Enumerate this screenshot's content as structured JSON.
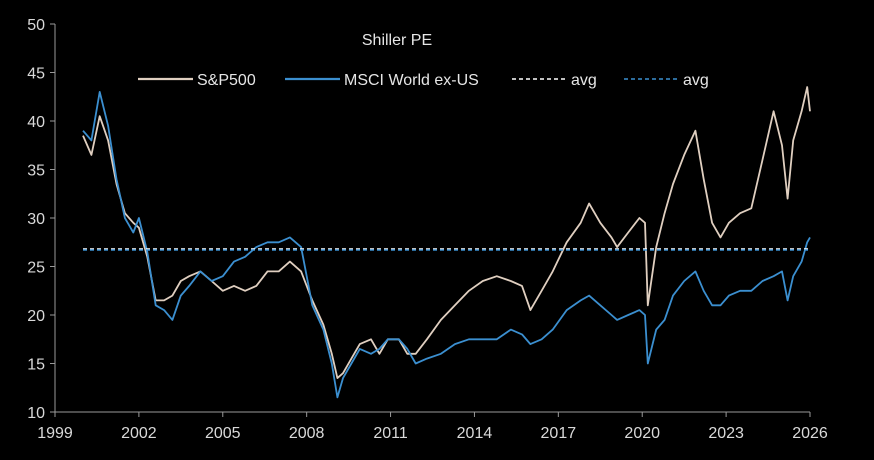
{
  "chart_data": {
    "type": "line",
    "title": "Shiller PE",
    "xlabel": "",
    "ylabel": "",
    "xlim": [
      1999,
      2026
    ],
    "ylim": [
      10,
      50
    ],
    "grid": false,
    "legend_position": "top",
    "x_ticks": [
      "1999",
      "2002",
      "2005",
      "2008",
      "2011",
      "2014",
      "2017",
      "2020",
      "2023",
      "2026"
    ],
    "y_ticks": [
      "10",
      "15",
      "20",
      "25",
      "30",
      "35",
      "40",
      "45",
      "50"
    ],
    "series": [
      {
        "name": "S&P500",
        "color": "#e0cfc0",
        "style": "solid",
        "x": [
          2000.0,
          2000.3,
          2000.6,
          2000.9,
          2001.2,
          2001.5,
          2001.8,
          2002.0,
          2002.3,
          2002.6,
          2002.9,
          2003.2,
          2003.5,
          2003.8,
          2004.2,
          2004.6,
          2005.0,
          2005.4,
          2005.8,
          2006.2,
          2006.6,
          2007.0,
          2007.4,
          2007.8,
          2008.2,
          2008.6,
          2008.9,
          2009.1,
          2009.3,
          2009.6,
          2009.9,
          2010.3,
          2010.6,
          2010.9,
          2011.3,
          2011.6,
          2011.9,
          2012.3,
          2012.8,
          2013.3,
          2013.8,
          2014.3,
          2014.8,
          2015.3,
          2015.7,
          2016.0,
          2016.4,
          2016.8,
          2017.3,
          2017.8,
          2018.1,
          2018.5,
          2018.9,
          2019.1,
          2019.5,
          2019.9,
          2020.1,
          2020.2,
          2020.5,
          2020.8,
          2021.1,
          2021.5,
          2021.9,
          2022.2,
          2022.5,
          2022.8,
          2023.1,
          2023.5,
          2023.9,
          2024.3,
          2024.7,
          2025.0,
          2025.2,
          2025.4,
          2025.7,
          2025.9,
          2026.0
        ],
        "y": [
          38.5,
          36.5,
          40.5,
          38.0,
          33.5,
          30.5,
          29.5,
          29.0,
          26.0,
          21.5,
          21.5,
          22.0,
          23.5,
          24.0,
          24.5,
          23.5,
          22.5,
          23.0,
          22.5,
          23.0,
          24.5,
          24.5,
          25.5,
          24.5,
          21.5,
          19.0,
          16.0,
          13.5,
          14.0,
          15.5,
          17.0,
          17.5,
          16.0,
          17.5,
          17.5,
          16.0,
          16.0,
          17.5,
          19.5,
          21.0,
          22.5,
          23.5,
          24.0,
          23.5,
          23.0,
          20.5,
          22.5,
          24.5,
          27.5,
          29.5,
          31.5,
          29.5,
          28.0,
          27.0,
          28.5,
          30.0,
          29.5,
          21.0,
          27.0,
          30.5,
          33.5,
          36.5,
          39.0,
          34.0,
          29.5,
          28.0,
          29.5,
          30.5,
          31.0,
          36.0,
          41.0,
          37.5,
          32.0,
          38.0,
          41.0,
          43.5,
          41.0
        ]
      },
      {
        "name": "MSCI World ex-US",
        "color": "#3b8fd0",
        "style": "solid",
        "x": [
          2000.0,
          2000.3,
          2000.6,
          2000.9,
          2001.2,
          2001.5,
          2001.8,
          2002.0,
          2002.3,
          2002.6,
          2002.9,
          2003.2,
          2003.5,
          2003.8,
          2004.2,
          2004.6,
          2005.0,
          2005.4,
          2005.8,
          2006.2,
          2006.6,
          2007.0,
          2007.4,
          2007.8,
          2008.2,
          2008.6,
          2008.9,
          2009.1,
          2009.3,
          2009.6,
          2009.9,
          2010.3,
          2010.6,
          2010.9,
          2011.3,
          2011.6,
          2011.9,
          2012.3,
          2012.8,
          2013.3,
          2013.8,
          2014.3,
          2014.8,
          2015.3,
          2015.7,
          2016.0,
          2016.4,
          2016.8,
          2017.3,
          2017.8,
          2018.1,
          2018.5,
          2018.9,
          2019.1,
          2019.5,
          2019.9,
          2020.1,
          2020.2,
          2020.5,
          2020.8,
          2021.1,
          2021.5,
          2021.9,
          2022.2,
          2022.5,
          2022.8,
          2023.1,
          2023.5,
          2023.9,
          2024.3,
          2024.7,
          2025.0,
          2025.2,
          2025.4,
          2025.7,
          2025.9,
          2026.0
        ],
        "y": [
          39.0,
          38.0,
          43.0,
          39.5,
          34.0,
          30.0,
          28.5,
          30.0,
          26.5,
          21.0,
          20.5,
          19.5,
          22.0,
          23.0,
          24.5,
          23.5,
          24.0,
          25.5,
          26.0,
          27.0,
          27.5,
          27.5,
          28.0,
          27.0,
          21.0,
          18.5,
          15.0,
          11.5,
          13.5,
          15.0,
          16.5,
          16.0,
          16.5,
          17.5,
          17.5,
          16.5,
          15.0,
          15.5,
          16.0,
          17.0,
          17.5,
          17.5,
          17.5,
          18.5,
          18.0,
          17.0,
          17.5,
          18.5,
          20.5,
          21.5,
          22.0,
          21.0,
          20.0,
          19.5,
          20.0,
          20.5,
          20.0,
          15.0,
          18.5,
          19.5,
          22.0,
          23.5,
          24.5,
          22.5,
          21.0,
          21.0,
          22.0,
          22.5,
          22.5,
          23.5,
          24.0,
          24.5,
          21.5,
          24.0,
          25.5,
          27.5,
          28.0
        ]
      },
      {
        "name": "avg",
        "color": "#ffffff",
        "style": "dashed",
        "x": [
          2000.0,
          2026.0
        ],
        "y": [
          26.8,
          26.8
        ]
      },
      {
        "name": "avg",
        "color": "#3b8fd0",
        "style": "dashed",
        "x": [
          2000.0,
          2026.0
        ],
        "y": [
          26.7,
          26.7
        ]
      }
    ]
  }
}
